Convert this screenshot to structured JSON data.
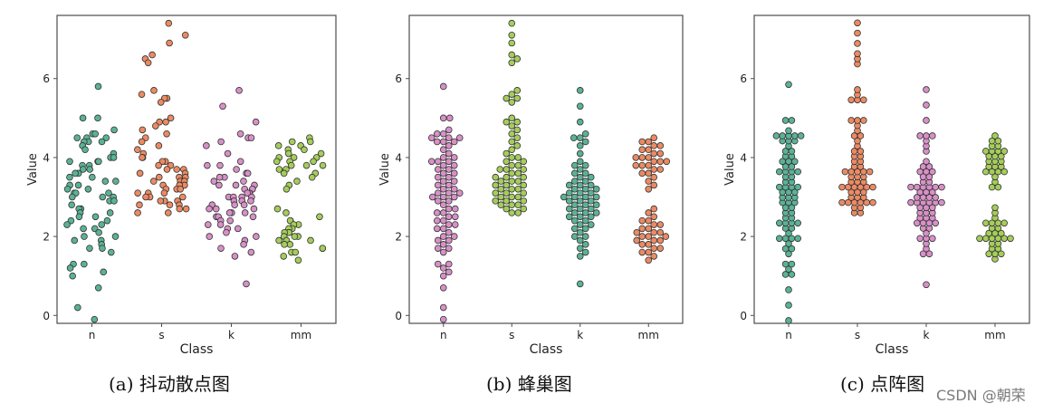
{
  "captions": [
    "(a)  抖动散点图",
    "(b)  蜂巢图",
    "(c)  点阵图"
  ],
  "watermark": "CSDN @朝荣",
  "colors": {
    "teal": "#5bb296",
    "orange": "#ec8a63",
    "pink": "#d890c7",
    "green": "#a5cd5a",
    "stroke": "#333333",
    "frame": "#4d4d4d"
  },
  "chart_data": [
    {
      "type": "scatter",
      "style": "jitter",
      "title": "",
      "xlabel": "Class",
      "ylabel": "Value",
      "categories": [
        "n",
        "s",
        "k",
        "mm"
      ],
      "ylim": [
        -0.2,
        7.6
      ],
      "yticks": [
        0,
        2,
        4,
        6
      ],
      "grid": false,
      "series": [
        {
          "category": "n",
          "color": "teal",
          "values": [
            5.8,
            5.0,
            5.0,
            4.7,
            4.6,
            4.6,
            4.5,
            4.5,
            4.5,
            4.4,
            4.4,
            4.4,
            4.3,
            4.2,
            4.1,
            4.0,
            4.0,
            3.9,
            3.9,
            3.9,
            3.8,
            3.8,
            3.7,
            3.7,
            3.6,
            3.6,
            3.5,
            3.5,
            3.4,
            3.4,
            3.3,
            3.3,
            3.2,
            3.2,
            3.1,
            3.1,
            3.1,
            3.0,
            3.0,
            3.0,
            2.9,
            2.9,
            2.8,
            2.7,
            2.7,
            2.6,
            2.6,
            2.5,
            2.5,
            2.4,
            2.4,
            2.3,
            2.3,
            2.2,
            2.2,
            2.1,
            2.0,
            2.0,
            1.9,
            1.9,
            1.8,
            1.7,
            1.7,
            1.6,
            1.3,
            1.3,
            1.2,
            1.1,
            1.0,
            0.7,
            0.2,
            -0.1
          ]
        },
        {
          "category": "s",
          "color": "orange",
          "values": [
            7.4,
            7.1,
            6.9,
            6.6,
            6.5,
            6.4,
            5.7,
            5.6,
            5.5,
            5.5,
            5.4,
            5.0,
            4.9,
            4.9,
            4.8,
            4.7,
            4.6,
            4.5,
            4.4,
            4.3,
            4.2,
            4.1,
            4.0,
            4.0,
            3.9,
            3.9,
            3.8,
            3.8,
            3.7,
            3.7,
            3.7,
            3.6,
            3.6,
            3.5,
            3.5,
            3.5,
            3.4,
            3.4,
            3.4,
            3.3,
            3.3,
            3.3,
            3.2,
            3.2,
            3.2,
            3.1,
            3.1,
            3.1,
            3.0,
            3.0,
            3.0,
            2.9,
            2.9,
            2.9,
            2.8,
            2.8,
            2.8,
            2.7,
            2.7,
            2.6,
            2.6
          ]
        },
        {
          "category": "k",
          "color": "pink",
          "values": [
            5.7,
            5.3,
            4.9,
            4.6,
            4.5,
            4.5,
            4.4,
            4.3,
            4.1,
            3.9,
            3.8,
            3.8,
            3.7,
            3.6,
            3.6,
            3.5,
            3.5,
            3.4,
            3.4,
            3.3,
            3.3,
            3.3,
            3.2,
            3.2,
            3.2,
            3.1,
            3.1,
            3.1,
            3.0,
            3.0,
            3.0,
            3.0,
            2.9,
            2.9,
            2.9,
            2.8,
            2.8,
            2.8,
            2.7,
            2.7,
            2.7,
            2.6,
            2.6,
            2.6,
            2.5,
            2.5,
            2.5,
            2.4,
            2.4,
            2.3,
            2.3,
            2.2,
            2.2,
            2.1,
            2.0,
            2.0,
            1.9,
            1.8,
            1.7,
            1.6,
            1.5,
            0.8
          ]
        },
        {
          "category": "mm",
          "color": "green",
          "values": [
            4.5,
            4.4,
            4.4,
            4.3,
            4.3,
            4.2,
            4.2,
            4.1,
            4.1,
            4.0,
            4.0,
            4.0,
            3.9,
            3.9,
            3.9,
            3.8,
            3.8,
            3.8,
            3.7,
            3.7,
            3.6,
            3.6,
            3.5,
            3.4,
            3.3,
            3.2,
            2.7,
            2.6,
            2.5,
            2.4,
            2.4,
            2.3,
            2.3,
            2.2,
            2.2,
            2.1,
            2.1,
            2.1,
            2.0,
            2.0,
            2.0,
            1.9,
            1.9,
            1.9,
            1.8,
            1.8,
            1.7,
            1.7,
            1.6,
            1.6,
            1.5,
            1.4
          ]
        }
      ]
    },
    {
      "type": "scatter",
      "style": "beeswarm",
      "title": "",
      "xlabel": "Class",
      "ylabel": "Value",
      "categories": [
        "n",
        "s",
        "k",
        "mm"
      ],
      "ylim": [
        -0.2,
        7.6
      ],
      "yticks": [
        0,
        2,
        4,
        6
      ],
      "grid": false,
      "series": [
        {
          "category": "n",
          "color": "pink",
          "values": [
            5.8,
            5.0,
            5.0,
            4.7,
            4.6,
            4.6,
            4.5,
            4.5,
            4.5,
            4.4,
            4.4,
            4.4,
            4.3,
            4.2,
            4.1,
            4.0,
            4.0,
            3.9,
            3.9,
            3.9,
            3.8,
            3.8,
            3.7,
            3.7,
            3.6,
            3.6,
            3.5,
            3.5,
            3.4,
            3.4,
            3.3,
            3.3,
            3.2,
            3.2,
            3.1,
            3.1,
            3.1,
            3.0,
            3.0,
            3.0,
            2.9,
            2.9,
            2.8,
            2.7,
            2.7,
            2.6,
            2.6,
            2.5,
            2.5,
            2.4,
            2.4,
            2.3,
            2.3,
            2.2,
            2.2,
            2.1,
            2.0,
            2.0,
            1.9,
            1.9,
            1.8,
            1.7,
            1.7,
            1.6,
            1.3,
            1.3,
            1.2,
            1.1,
            1.0,
            0.7,
            0.2,
            -0.1
          ]
        },
        {
          "category": "s",
          "color": "green",
          "values": [
            7.4,
            7.1,
            6.9,
            6.6,
            6.5,
            6.4,
            5.7,
            5.6,
            5.5,
            5.5,
            5.4,
            5.0,
            4.9,
            4.9,
            4.8,
            4.7,
            4.6,
            4.5,
            4.4,
            4.3,
            4.2,
            4.1,
            4.0,
            4.0,
            3.9,
            3.9,
            3.8,
            3.8,
            3.7,
            3.7,
            3.7,
            3.6,
            3.6,
            3.5,
            3.5,
            3.5,
            3.4,
            3.4,
            3.4,
            3.3,
            3.3,
            3.3,
            3.2,
            3.2,
            3.2,
            3.1,
            3.1,
            3.1,
            3.0,
            3.0,
            3.0,
            2.9,
            2.9,
            2.9,
            2.8,
            2.8,
            2.8,
            2.7,
            2.7,
            2.6,
            2.6
          ]
        },
        {
          "category": "k",
          "color": "teal",
          "values": [
            5.7,
            5.3,
            4.9,
            4.6,
            4.5,
            4.5,
            4.4,
            4.3,
            4.1,
            3.9,
            3.8,
            3.8,
            3.7,
            3.6,
            3.6,
            3.5,
            3.5,
            3.4,
            3.4,
            3.3,
            3.3,
            3.3,
            3.2,
            3.2,
            3.2,
            3.1,
            3.1,
            3.1,
            3.0,
            3.0,
            3.0,
            3.0,
            2.9,
            2.9,
            2.9,
            2.8,
            2.8,
            2.8,
            2.7,
            2.7,
            2.7,
            2.6,
            2.6,
            2.6,
            2.5,
            2.5,
            2.5,
            2.4,
            2.4,
            2.3,
            2.3,
            2.2,
            2.2,
            2.1,
            2.0,
            2.0,
            1.9,
            1.8,
            1.7,
            1.6,
            1.5,
            0.8
          ]
        },
        {
          "category": "mm",
          "color": "orange",
          "values": [
            4.5,
            4.4,
            4.4,
            4.3,
            4.3,
            4.2,
            4.2,
            4.1,
            4.1,
            4.0,
            4.0,
            4.0,
            3.9,
            3.9,
            3.9,
            3.8,
            3.8,
            3.8,
            3.7,
            3.7,
            3.6,
            3.6,
            3.5,
            3.4,
            3.3,
            3.2,
            2.7,
            2.6,
            2.5,
            2.4,
            2.4,
            2.3,
            2.3,
            2.2,
            2.2,
            2.1,
            2.1,
            2.1,
            2.0,
            2.0,
            2.0,
            1.9,
            1.9,
            1.9,
            1.8,
            1.8,
            1.7,
            1.7,
            1.6,
            1.6,
            1.5,
            1.4
          ]
        }
      ]
    },
    {
      "type": "scatter",
      "style": "dotplot",
      "title": "",
      "xlabel": "Class",
      "ylabel": "Value",
      "categories": [
        "n",
        "s",
        "k",
        "mm"
      ],
      "ylim": [
        -0.2,
        7.6
      ],
      "yticks": [
        0,
        2,
        4,
        6
      ],
      "grid": false,
      "series": [
        {
          "category": "n",
          "color": "teal",
          "values": [
            5.8,
            5.0,
            5.0,
            4.7,
            4.6,
            4.6,
            4.5,
            4.5,
            4.5,
            4.4,
            4.4,
            4.4,
            4.3,
            4.2,
            4.1,
            4.0,
            4.0,
            3.9,
            3.9,
            3.9,
            3.8,
            3.8,
            3.7,
            3.7,
            3.6,
            3.6,
            3.5,
            3.5,
            3.4,
            3.4,
            3.3,
            3.3,
            3.2,
            3.2,
            3.1,
            3.1,
            3.1,
            3.0,
            3.0,
            3.0,
            2.9,
            2.9,
            2.8,
            2.7,
            2.7,
            2.6,
            2.6,
            2.5,
            2.5,
            2.4,
            2.4,
            2.3,
            2.3,
            2.2,
            2.2,
            2.1,
            2.0,
            2.0,
            1.9,
            1.9,
            1.8,
            1.7,
            1.7,
            1.6,
            1.3,
            1.3,
            1.2,
            1.1,
            1.0,
            0.7,
            0.2,
            -0.1
          ]
        },
        {
          "category": "s",
          "color": "orange",
          "values": [
            7.4,
            7.1,
            6.9,
            6.6,
            6.5,
            6.4,
            5.7,
            5.6,
            5.5,
            5.5,
            5.4,
            5.0,
            4.9,
            4.9,
            4.8,
            4.7,
            4.6,
            4.5,
            4.4,
            4.3,
            4.2,
            4.1,
            4.0,
            4.0,
            3.9,
            3.9,
            3.8,
            3.8,
            3.7,
            3.7,
            3.7,
            3.6,
            3.6,
            3.5,
            3.5,
            3.5,
            3.4,
            3.4,
            3.4,
            3.3,
            3.3,
            3.3,
            3.2,
            3.2,
            3.2,
            3.1,
            3.1,
            3.1,
            3.0,
            3.0,
            3.0,
            2.9,
            2.9,
            2.9,
            2.8,
            2.8,
            2.8,
            2.7,
            2.7,
            2.6,
            2.6
          ]
        },
        {
          "category": "k",
          "color": "pink",
          "values": [
            5.7,
            5.3,
            4.9,
            4.6,
            4.5,
            4.5,
            4.4,
            4.3,
            4.1,
            3.9,
            3.8,
            3.8,
            3.7,
            3.6,
            3.6,
            3.5,
            3.5,
            3.4,
            3.4,
            3.3,
            3.3,
            3.3,
            3.2,
            3.2,
            3.2,
            3.1,
            3.1,
            3.1,
            3.0,
            3.0,
            3.0,
            3.0,
            2.9,
            2.9,
            2.9,
            2.8,
            2.8,
            2.8,
            2.7,
            2.7,
            2.7,
            2.6,
            2.6,
            2.6,
            2.5,
            2.5,
            2.5,
            2.4,
            2.4,
            2.3,
            2.3,
            2.2,
            2.2,
            2.1,
            2.0,
            2.0,
            1.9,
            1.8,
            1.7,
            1.6,
            1.5,
            0.8
          ]
        },
        {
          "category": "mm",
          "color": "green",
          "values": [
            4.5,
            4.4,
            4.4,
            4.3,
            4.3,
            4.2,
            4.2,
            4.1,
            4.1,
            4.0,
            4.0,
            4.0,
            3.9,
            3.9,
            3.9,
            3.8,
            3.8,
            3.8,
            3.7,
            3.7,
            3.6,
            3.6,
            3.5,
            3.4,
            3.3,
            3.2,
            2.7,
            2.6,
            2.5,
            2.4,
            2.4,
            2.3,
            2.3,
            2.2,
            2.2,
            2.1,
            2.1,
            2.1,
            2.0,
            2.0,
            2.0,
            1.9,
            1.9,
            1.9,
            1.8,
            1.8,
            1.7,
            1.7,
            1.6,
            1.6,
            1.5,
            1.4
          ]
        }
      ]
    }
  ]
}
